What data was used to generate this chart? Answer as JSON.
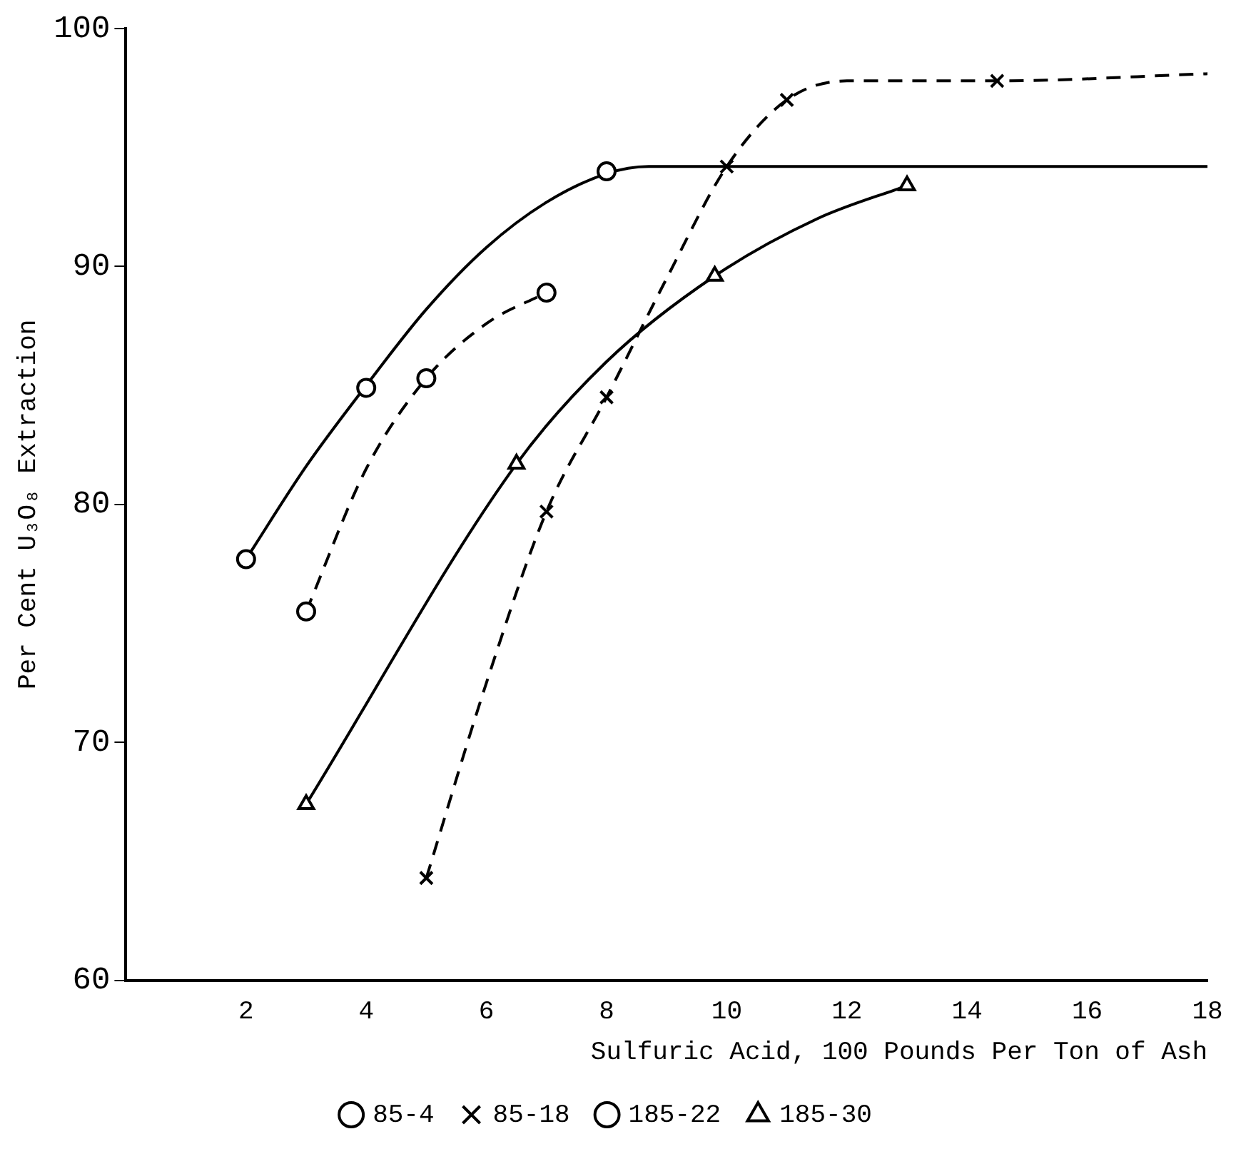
{
  "chart_data": {
    "type": "scatter",
    "xlabel": "Sulfuric Acid, 100 Pounds Per Ton of Ash",
    "ylabel": "Per Cent U₃O₈ Extraction",
    "xlim": [
      0,
      18
    ],
    "xticks": [
      2,
      4,
      6,
      8,
      10,
      12,
      14,
      16,
      18
    ],
    "ylim": [
      60,
      100
    ],
    "yticks": [
      60,
      70,
      80,
      90,
      100
    ],
    "grid": false,
    "legend": "bottom",
    "series": [
      {
        "name": "85-4",
        "marker": "circle",
        "color": "#000000",
        "x": [
          2,
          4,
          8
        ],
        "values": [
          77.7,
          84.9,
          94.0
        ]
      },
      {
        "name": "85-18",
        "marker": "cross",
        "color": "#000000",
        "x": [
          5,
          7,
          8,
          10,
          11,
          14.5
        ],
        "values": [
          64.3,
          79.7,
          84.5,
          94.2,
          97.0,
          97.8
        ]
      },
      {
        "name": "185-22",
        "marker": "circle",
        "color": "#000000",
        "x": [
          3,
          5,
          7
        ],
        "values": [
          75.5,
          85.3,
          88.9
        ]
      },
      {
        "name": "185-30",
        "marker": "triangle",
        "color": "#000000",
        "x": [
          3,
          6.5,
          9.8,
          13
        ],
        "values": [
          67.4,
          81.7,
          89.6,
          93.4
        ]
      },
      {
        "type": "line",
        "marker": "none",
        "line_style": "solid",
        "color": "#000000",
        "x": [
          2,
          3,
          4,
          5,
          6,
          7,
          8,
          8.7,
          18
        ],
        "values": [
          77.7,
          81.6,
          85.0,
          88.2,
          90.8,
          92.7,
          93.9,
          94.2,
          94.2
        ]
      },
      {
        "type": "line",
        "marker": "none",
        "line_style": "dashed",
        "color": "#000000",
        "x": [
          5,
          6,
          7,
          8,
          9,
          10,
          11,
          12,
          14.5,
          18
        ],
        "values": [
          64.3,
          72.5,
          79.7,
          84.5,
          89.5,
          94.2,
          97.0,
          97.8,
          97.8,
          98.1
        ]
      },
      {
        "type": "line",
        "marker": "none",
        "line_style": "dashed",
        "color": "#000000",
        "x": [
          3,
          4,
          5,
          6,
          7
        ],
        "values": [
          75.5,
          81.5,
          85.3,
          87.6,
          88.9
        ]
      },
      {
        "type": "line",
        "marker": "none",
        "line_style": "solid",
        "color": "#000000",
        "x": [
          3,
          6.5,
          8,
          9.8,
          11.5,
          13
        ],
        "values": [
          67.4,
          81.7,
          86.0,
          89.6,
          92.0,
          93.4
        ]
      }
    ]
  }
}
